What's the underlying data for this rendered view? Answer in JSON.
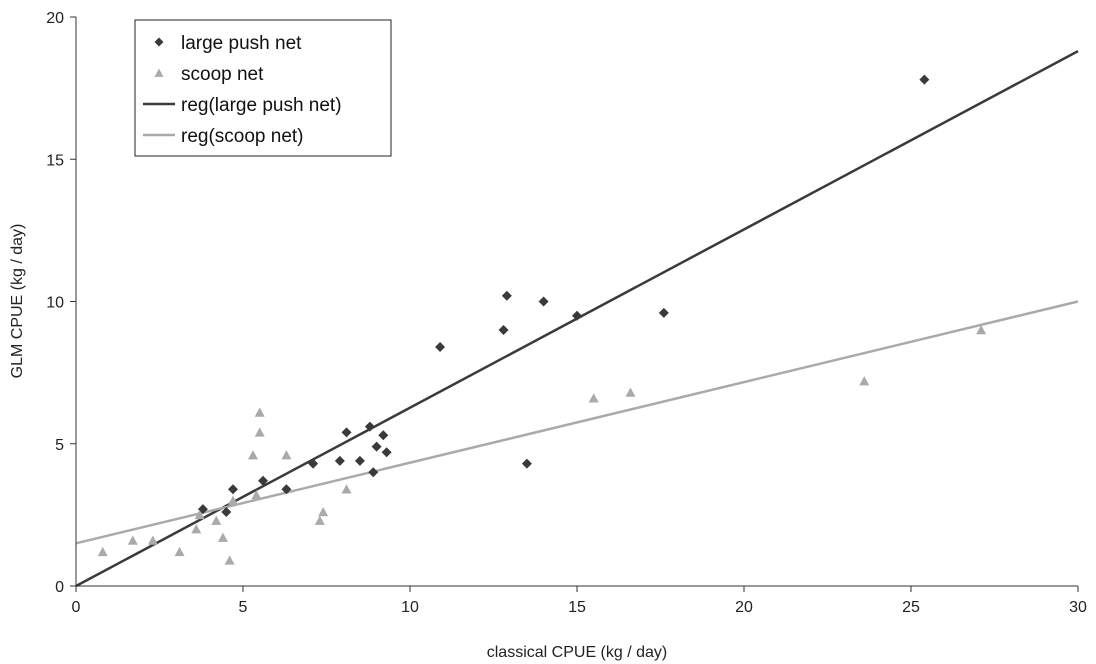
{
  "chart_data": {
    "type": "scatter",
    "title": "",
    "xlabel": "classical CPUE (kg / day)",
    "ylabel": "GLM CPUE (kg / day)",
    "xlim": [
      0,
      30
    ],
    "ylim": [
      0,
      20
    ],
    "x_ticks": [
      "0",
      "5",
      "10",
      "15",
      "20",
      "25",
      "30"
    ],
    "y_ticks": [
      "0",
      "5",
      "10",
      "15",
      "20"
    ],
    "grid": false,
    "legend_position": "top-left",
    "series": [
      {
        "name": "large push net",
        "marker": "diamond",
        "color": "#3a3a3a",
        "points": [
          [
            3.8,
            2.7
          ],
          [
            4.5,
            2.6
          ],
          [
            4.7,
            3.4
          ],
          [
            5.6,
            3.7
          ],
          [
            6.3,
            3.4
          ],
          [
            7.1,
            4.3
          ],
          [
            7.9,
            4.4
          ],
          [
            8.1,
            5.4
          ],
          [
            8.5,
            4.4
          ],
          [
            8.8,
            5.6
          ],
          [
            8.9,
            4.0
          ],
          [
            9.0,
            4.9
          ],
          [
            9.2,
            5.3
          ],
          [
            9.3,
            4.7
          ],
          [
            10.9,
            8.4
          ],
          [
            12.8,
            9.0
          ],
          [
            12.9,
            10.2
          ],
          [
            13.5,
            4.3
          ],
          [
            14.0,
            10.0
          ],
          [
            15.0,
            9.5
          ],
          [
            17.6,
            9.6
          ],
          [
            25.4,
            17.8
          ]
        ]
      },
      {
        "name": "scoop net",
        "marker": "triangle",
        "color": "#aaaaaa",
        "points": [
          [
            0.8,
            1.2
          ],
          [
            1.7,
            1.6
          ],
          [
            2.3,
            1.6
          ],
          [
            3.1,
            1.2
          ],
          [
            3.6,
            2.0
          ],
          [
            3.7,
            2.5
          ],
          [
            4.2,
            2.3
          ],
          [
            4.4,
            1.7
          ],
          [
            4.6,
            0.9
          ],
          [
            4.7,
            3.0
          ],
          [
            5.3,
            4.6
          ],
          [
            5.4,
            3.2
          ],
          [
            5.5,
            6.1
          ],
          [
            5.5,
            5.4
          ],
          [
            6.3,
            4.6
          ],
          [
            7.3,
            2.3
          ],
          [
            7.4,
            2.6
          ],
          [
            8.1,
            3.4
          ],
          [
            15.5,
            6.6
          ],
          [
            16.6,
            6.8
          ],
          [
            23.6,
            7.2
          ],
          [
            27.1,
            9.0
          ]
        ]
      },
      {
        "name": "reg(large push net)",
        "type": "line",
        "color": "#3a3a3a",
        "x": [
          0,
          30
        ],
        "y": [
          0,
          18.8
        ]
      },
      {
        "name": "reg(scoop net)",
        "type": "line",
        "color": "#aaaaaa",
        "x": [
          0,
          30
        ],
        "y": [
          1.5,
          10.0
        ]
      }
    ]
  }
}
